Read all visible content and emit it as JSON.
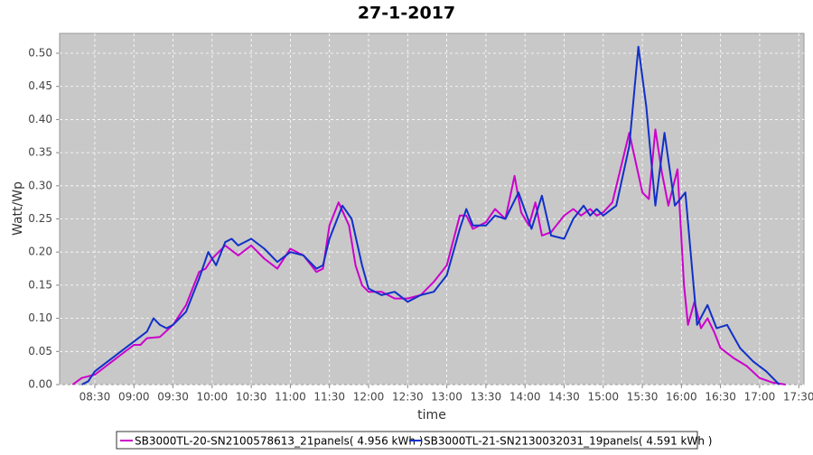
{
  "chart_data": {
    "type": "line",
    "title": "27-1-2017",
    "x_label": "time",
    "y_label": "Watt/Wp",
    "xlim": [
      "08:03",
      "17:34"
    ],
    "xticks": [
      "08:30",
      "09:00",
      "09:30",
      "10:00",
      "10:30",
      "11:00",
      "11:30",
      "12:00",
      "12:30",
      "13:00",
      "13:30",
      "14:00",
      "14:30",
      "15:00",
      "15:30",
      "16:00",
      "16:30",
      "17:00",
      "17:30"
    ],
    "ylim": [
      0,
      0.53
    ],
    "yticks": [
      {
        "value": 0,
        "label": "0.00"
      },
      {
        "value": 0.05,
        "label": "0.05"
      },
      {
        "value": 0.1,
        "label": "0.10"
      },
      {
        "value": 0.15,
        "label": "0.15"
      },
      {
        "value": 0.2,
        "label": "0.20"
      },
      {
        "value": 0.25,
        "label": "0.25"
      },
      {
        "value": 0.3,
        "label": "0.30"
      },
      {
        "value": 0.35,
        "label": "0.35"
      },
      {
        "value": 0.4,
        "label": "0.40"
      },
      {
        "value": 0.45,
        "label": "0.45"
      },
      {
        "value": 0.5,
        "label": "0.50"
      }
    ],
    "grid": true,
    "legend": "bottom",
    "series": [
      {
        "name": "SB3000TL-20-SN2100578613_21panels( 4.956 kWh )",
        "color": "#cc00cc",
        "x": [
          "08:13",
          "08:20",
          "08:30",
          "08:40",
          "08:50",
          "09:00",
          "09:05",
          "09:10",
          "09:20",
          "09:30",
          "09:40",
          "09:50",
          "09:55",
          "10:00",
          "10:10",
          "10:20",
          "10:30",
          "10:40",
          "10:50",
          "11:00",
          "11:10",
          "11:20",
          "11:25",
          "11:30",
          "11:37",
          "11:45",
          "11:50",
          "11:55",
          "12:00",
          "12:10",
          "12:20",
          "12:30",
          "12:40",
          "12:50",
          "13:00",
          "13:10",
          "13:15",
          "13:20",
          "13:30",
          "13:37",
          "13:45",
          "13:52",
          "13:57",
          "14:03",
          "14:08",
          "14:13",
          "14:20",
          "14:30",
          "14:37",
          "14:43",
          "14:50",
          "14:55",
          "15:00",
          "15:07",
          "15:20",
          "15:30",
          "15:35",
          "15:40",
          "15:45",
          "15:50",
          "15:57",
          "16:02",
          "16:05",
          "16:10",
          "16:15",
          "16:20",
          "16:25",
          "16:30",
          "16:40",
          "16:50",
          "17:00",
          "17:10",
          "17:20"
        ],
        "values": [
          0,
          0.01,
          0.015,
          0.03,
          0.045,
          0.06,
          0.06,
          0.07,
          0.072,
          0.09,
          0.12,
          0.17,
          0.175,
          0.19,
          0.21,
          0.195,
          0.21,
          0.19,
          0.175,
          0.205,
          0.195,
          0.17,
          0.175,
          0.24,
          0.275,
          0.24,
          0.18,
          0.15,
          0.14,
          0.14,
          0.13,
          0.13,
          0.135,
          0.155,
          0.18,
          0.255,
          0.255,
          0.235,
          0.245,
          0.265,
          0.25,
          0.315,
          0.26,
          0.24,
          0.275,
          0.225,
          0.23,
          0.255,
          0.265,
          0.255,
          0.265,
          0.255,
          0.26,
          0.275,
          0.38,
          0.29,
          0.28,
          0.385,
          0.32,
          0.27,
          0.325,
          0.15,
          0.09,
          0.125,
          0.085,
          0.1,
          0.08,
          0.055,
          0.04,
          0.028,
          0.01,
          0.003,
          0
        ]
      },
      {
        "name": "SB3000TL-21-SN2130032031_19panels( 4.591 kWh )",
        "color": "#1030c8",
        "x": [
          "08:20",
          "08:25",
          "08:30",
          "08:40",
          "08:50",
          "09:00",
          "09:10",
          "09:15",
          "09:20",
          "09:25",
          "09:30",
          "09:40",
          "09:50",
          "09:57",
          "10:03",
          "10:10",
          "10:15",
          "10:20",
          "10:30",
          "10:40",
          "10:50",
          "11:00",
          "11:10",
          "11:20",
          "11:25",
          "11:30",
          "11:40",
          "11:47",
          "11:55",
          "12:00",
          "12:10",
          "12:20",
          "12:30",
          "12:40",
          "12:50",
          "13:00",
          "13:10",
          "13:15",
          "13:20",
          "13:30",
          "13:37",
          "13:45",
          "13:55",
          "14:05",
          "14:13",
          "14:20",
          "14:30",
          "14:37",
          "14:45",
          "14:50",
          "14:55",
          "15:00",
          "15:10",
          "15:20",
          "15:27",
          "15:33",
          "15:40",
          "15:47",
          "15:55",
          "16:03",
          "16:07",
          "16:12",
          "16:20",
          "16:27",
          "16:35",
          "16:45",
          "16:55",
          "17:05",
          "17:15"
        ],
        "values": [
          0,
          0.005,
          0.02,
          0.035,
          0.05,
          0.065,
          0.08,
          0.1,
          0.09,
          0.085,
          0.09,
          0.11,
          0.16,
          0.2,
          0.18,
          0.215,
          0.22,
          0.21,
          0.22,
          0.205,
          0.185,
          0.2,
          0.195,
          0.175,
          0.18,
          0.22,
          0.27,
          0.25,
          0.18,
          0.145,
          0.135,
          0.14,
          0.125,
          0.135,
          0.14,
          0.165,
          0.235,
          0.265,
          0.24,
          0.24,
          0.255,
          0.25,
          0.29,
          0.235,
          0.285,
          0.225,
          0.22,
          0.25,
          0.27,
          0.255,
          0.265,
          0.255,
          0.27,
          0.36,
          0.51,
          0.42,
          0.27,
          0.38,
          0.27,
          0.29,
          0.2,
          0.09,
          0.12,
          0.085,
          0.09,
          0.055,
          0.035,
          0.02,
          0
        ]
      }
    ]
  }
}
